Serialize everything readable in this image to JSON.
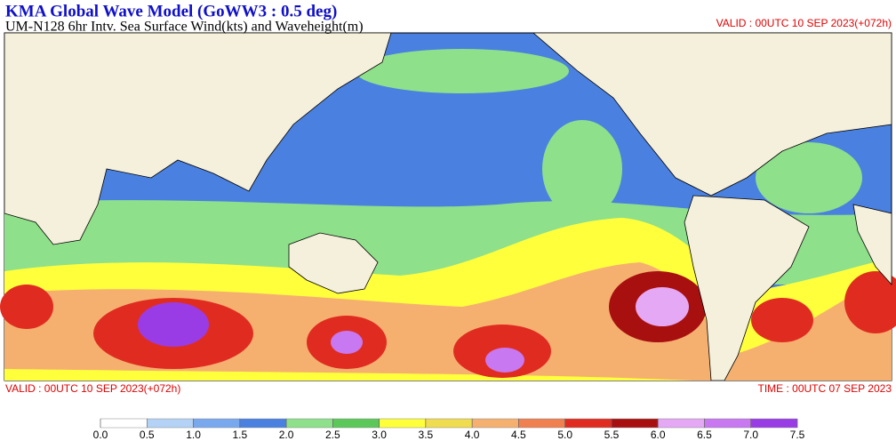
{
  "header": {
    "title": "KMA  Global Wave Model (GoWW3 : 0.5 deg)",
    "subtitle": "UM-N128  6hr Intv. Sea Surface Wind(kts) and Waveheight(m)",
    "valid": "VALID : 00UTC 10 SEP 2023(+072h)"
  },
  "footer": {
    "valid": "VALID : 00UTC 10 SEP 2023(+072h)",
    "time": "TIME : 00UTC 07 SEP 2023"
  },
  "legend": {
    "ticks": [
      {
        "value": 0,
        "label": "0.0"
      },
      {
        "value": 0.5,
        "label": "0.5"
      },
      {
        "value": 1,
        "label": "1.0"
      },
      {
        "value": 1.5,
        "label": "1.5"
      },
      {
        "value": 2,
        "label": "2.0"
      },
      {
        "value": 2.5,
        "label": "2.5"
      },
      {
        "value": 3,
        "label": "3.0"
      },
      {
        "value": 3.5,
        "label": "3.5"
      },
      {
        "value": 4,
        "label": "4.0"
      },
      {
        "value": 4.5,
        "label": "4.5"
      },
      {
        "value": 5,
        "label": "5.0"
      },
      {
        "value": 5.5,
        "label": "5.5"
      },
      {
        "value": 6,
        "label": "6.0"
      },
      {
        "value": 6.5,
        "label": "6.5"
      },
      {
        "value": 7,
        "label": "7.0"
      },
      {
        "value": 7.5,
        "label": "7.5"
      }
    ],
    "colors": [
      "#ffffff",
      "#b4d2f5",
      "#7aa8ee",
      "#4a80e0",
      "#8ee08a",
      "#5cc85a",
      "#ffff3c",
      "#f0dc50",
      "#f5b070",
      "#f08050",
      "#e02c20",
      "#a81010",
      "#e4a8f4",
      "#c878f0",
      "#9a3ce6"
    ]
  }
}
